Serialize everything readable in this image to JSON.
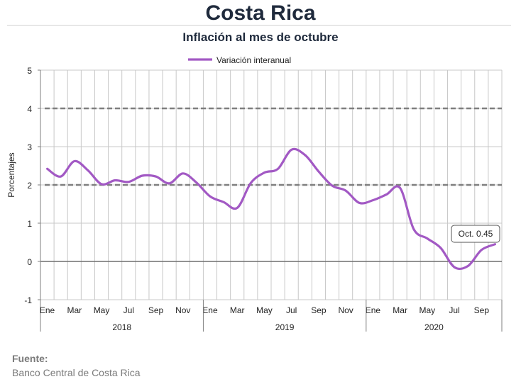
{
  "header": {
    "title": "Costa Rica",
    "subtitle": "Inflación al mes de octubre"
  },
  "source": {
    "label": "Fuente:",
    "text": "Banco Central de Costa Rica"
  },
  "colors": {
    "series": "#a259c4",
    "target_band": "#7f7f7f",
    "grid": "#c8c8c8",
    "axis": "#7f7f7f"
  },
  "chart_data": {
    "type": "line",
    "title": "Inflación al mes de octubre",
    "ylabel": "Porcentajes",
    "xlabel": "",
    "ylim": [
      -1,
      5
    ],
    "yticks": [
      -1,
      0,
      1,
      2,
      3,
      4,
      5
    ],
    "grid": true,
    "legend": "top-center",
    "target_band": [
      2,
      4
    ],
    "x_month_labels": [
      "Ene",
      "Mar",
      "May",
      "Jul",
      "Sep",
      "Nov"
    ],
    "x_month_labels_last_year": [
      "Ene",
      "Mar",
      "May",
      "Jul",
      "Sep"
    ],
    "years": [
      "2018",
      "2019",
      "2020"
    ],
    "series": [
      {
        "name": "Variación interanual",
        "x": [
          "2018-01",
          "2018-02",
          "2018-03",
          "2018-04",
          "2018-05",
          "2018-06",
          "2018-07",
          "2018-08",
          "2018-09",
          "2018-10",
          "2018-11",
          "2018-12",
          "2019-01",
          "2019-02",
          "2019-03",
          "2019-04",
          "2019-05",
          "2019-06",
          "2019-07",
          "2019-08",
          "2019-09",
          "2019-10",
          "2019-11",
          "2019-12",
          "2020-01",
          "2020-02",
          "2020-03",
          "2020-04",
          "2020-05",
          "2020-06",
          "2020-07",
          "2020-08",
          "2020-09",
          "2020-10"
        ],
        "values": [
          2.42,
          2.22,
          2.62,
          2.38,
          2.02,
          2.12,
          2.08,
          2.24,
          2.22,
          2.04,
          2.3,
          2.06,
          1.7,
          1.55,
          1.4,
          2.05,
          2.32,
          2.42,
          2.92,
          2.78,
          2.35,
          1.98,
          1.85,
          1.53,
          1.6,
          1.75,
          1.92,
          0.85,
          0.6,
          0.35,
          -0.15,
          -0.12,
          0.3,
          0.45
        ]
      }
    ],
    "annotation": "Oct. 0.45"
  }
}
